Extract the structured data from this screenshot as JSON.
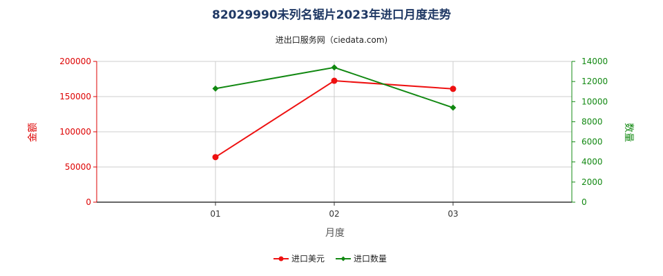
{
  "chart_data": {
    "type": "line",
    "title": "82029990未列名锯片2023年进口月度走势",
    "subtitle": "进出口服务网（ciedata.com)",
    "xlabel": "月度",
    "ylabel_left": "金额",
    "ylabel_right": "数量",
    "categories": [
      "01",
      "02",
      "03"
    ],
    "y_left": {
      "min": 0,
      "max": 200000,
      "ticks": [
        "0",
        "50000",
        "100000",
        "150000",
        "200000"
      ]
    },
    "y_right": {
      "min": 0,
      "max": 14000,
      "ticks": [
        "0",
        "2000",
        "4000",
        "6000",
        "8000",
        "10000",
        "12000",
        "14000"
      ]
    },
    "grid": true,
    "legend_position": "bottom",
    "series": [
      {
        "name": "进口美元",
        "axis": "left",
        "color": "#ee1111",
        "marker": "circle",
        "values": [
          64000,
          172500,
          161000
        ]
      },
      {
        "name": "进口数量",
        "axis": "right",
        "color": "#118811",
        "marker": "diamond",
        "values": [
          11300,
          13400,
          9400
        ]
      }
    ],
    "colors": {
      "left_axis": "#dd0000",
      "right_axis": "#118811",
      "grid": "#cccccc",
      "title": "#1f3864"
    }
  }
}
